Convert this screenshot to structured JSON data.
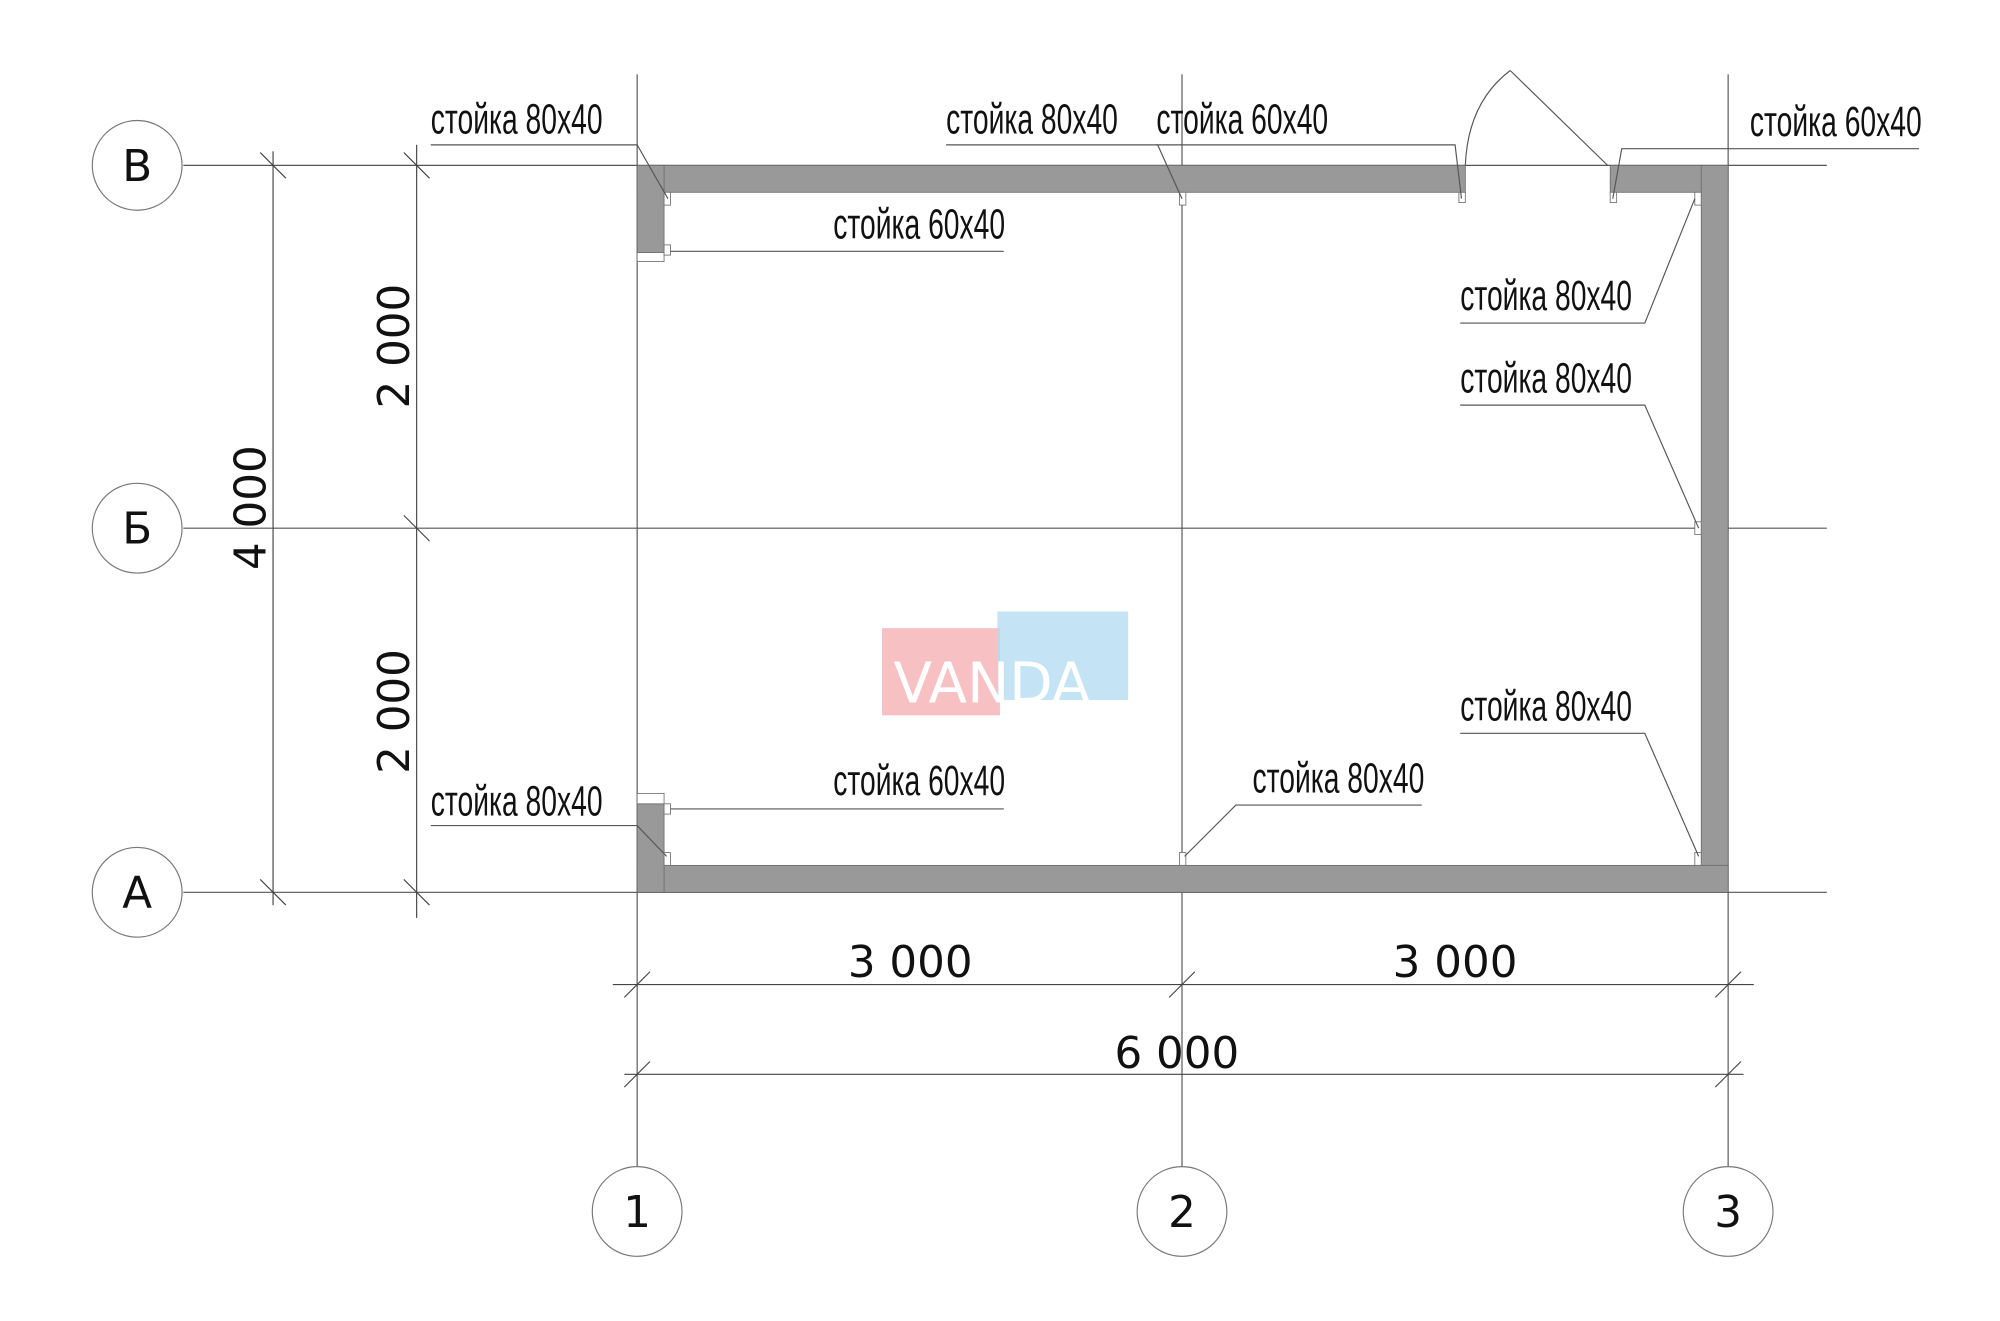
{
  "axes": {
    "rows": [
      "В",
      "Б",
      "А"
    ],
    "columns": [
      "1",
      "2",
      "3"
    ]
  },
  "dimensions": {
    "bottom_segments": [
      "3 000",
      "3 000"
    ],
    "bottom_total": "6 000",
    "left_segments": [
      "2 000",
      "2 000"
    ],
    "left_total": "4 000"
  },
  "labels": [
    "стойка 80x40",
    "стойка 80x40",
    "стойка 60x40",
    "стойка 60x40",
    "стойка 60x40",
    "стойка 80x40",
    "стойка 80x40",
    "стойка 80x40",
    "стойка 60x40",
    "стойка 80x40",
    "стойка 80x40"
  ],
  "watermark": {
    "text": "VANDA",
    "colors": [
      "#f4a3a8",
      "#a9d6ef"
    ]
  },
  "colors": {
    "wall": "#999999",
    "lines": "#555555"
  }
}
